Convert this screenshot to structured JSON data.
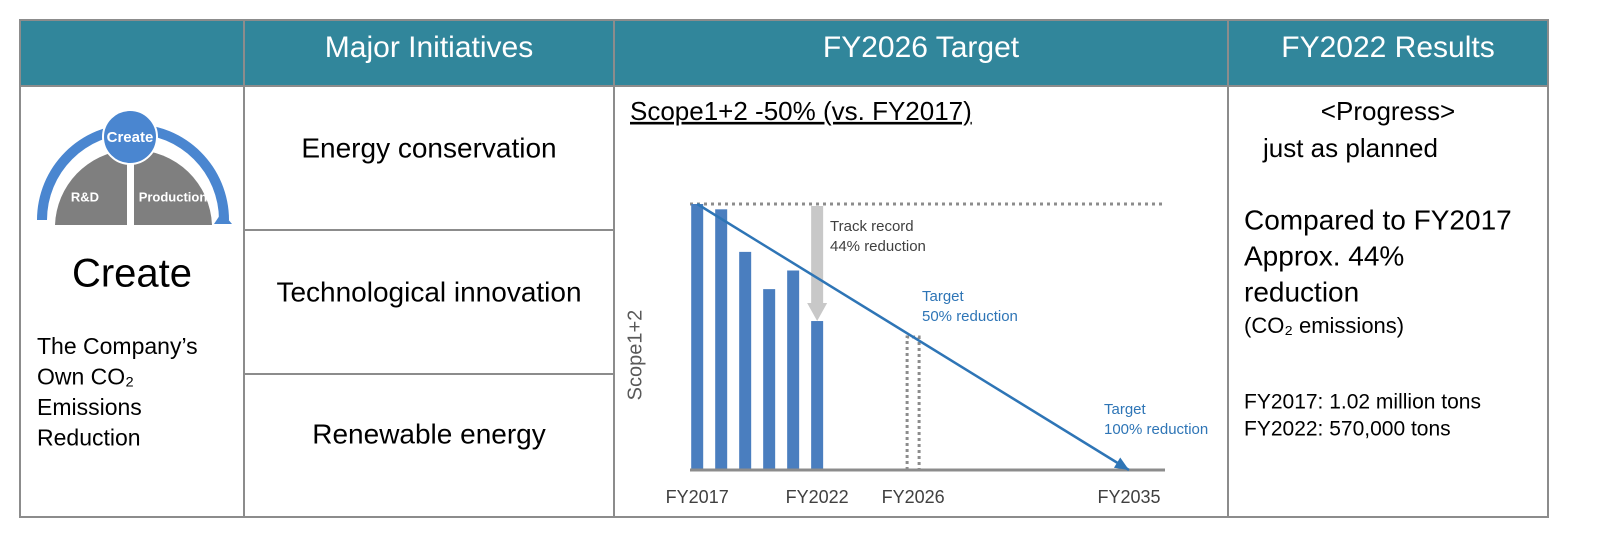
{
  "header": {
    "columns": [
      "Major Initiatives",
      "FY2026 Target",
      "FY2022 Results"
    ]
  },
  "left": {
    "diagram": {
      "center": "Create",
      "left": "R&D",
      "right": "Production"
    },
    "title": "Create",
    "description": [
      "The Company’s",
      "Own CO₂",
      "Emissions",
      "Reduction"
    ]
  },
  "initiatives": [
    "Energy conservation",
    "Technological innovation",
    "Renewable energy"
  ],
  "target_heading": "Scope1+2 -50% (vs. FY2017)",
  "chart_data": {
    "type": "bar",
    "ylabel": "Scope1+2",
    "x": [
      2017,
      2018,
      2019,
      2020,
      2021,
      2022
    ],
    "values": [
      100,
      98,
      82,
      68,
      75,
      56
    ],
    "color": "#4a7ebf",
    "xlim": [
      2016.7,
      2036.5
    ],
    "xticks": [
      {
        "value": 2017,
        "label": "FY2017"
      },
      {
        "value": 2022,
        "label": "FY2022"
      },
      {
        "value": 2026,
        "label": "FY2026"
      },
      {
        "value": 2035,
        "label": "FY2035"
      }
    ],
    "ylim": [
      0,
      100
    ],
    "target_line": {
      "x": [
        2017,
        2035
      ],
      "values": [
        100,
        0
      ],
      "color": "#2e75b6"
    },
    "milestone": {
      "x": 2026,
      "value": 50
    },
    "annotations": [
      [
        "Track record",
        "44% reduction"
      ],
      [
        "Target",
        "50% reduction"
      ],
      [
        "Target",
        "100% reduction"
      ]
    ]
  },
  "results": {
    "progress": [
      "<Progress>",
      "just as planned"
    ],
    "comparison": [
      "Compared to FY2017",
      "Approx. 44%",
      "reduction"
    ],
    "note": "(CO₂ emissions)",
    "figures": [
      "FY2017: 1.02 million tons",
      "FY2022: 570,000 tons"
    ]
  }
}
